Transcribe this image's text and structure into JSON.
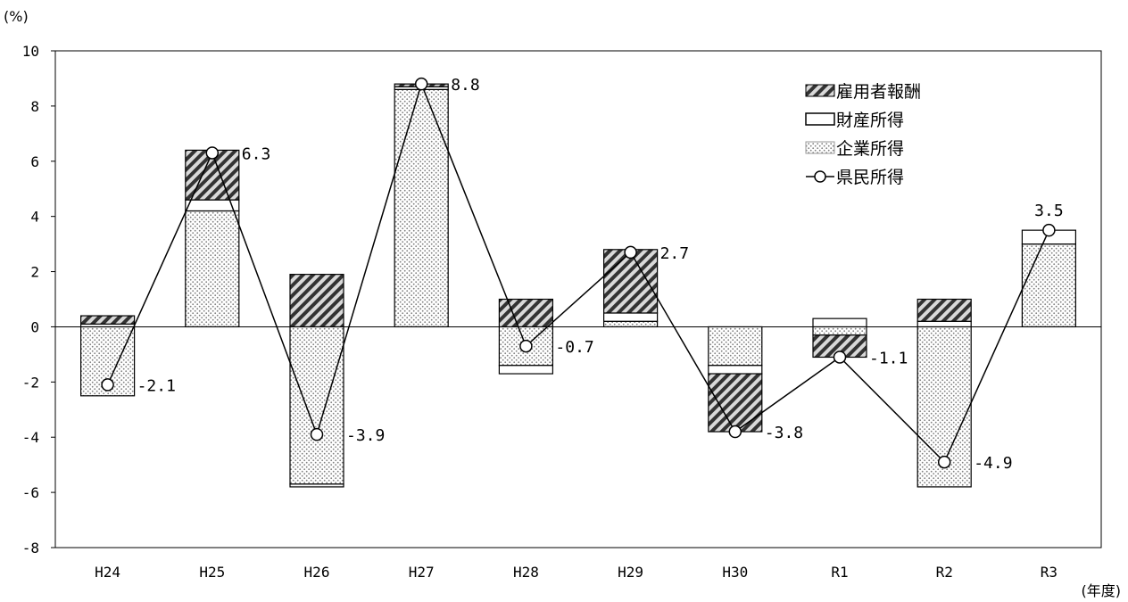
{
  "chart_data": {
    "type": "bar",
    "stacked": true,
    "y_unit": "(%)",
    "x_unit": "(年度)",
    "ylim": [
      -8,
      10
    ],
    "yticks": [
      -8,
      -6,
      -4,
      -2,
      0,
      2,
      4,
      6,
      8,
      10
    ],
    "ytick_labels": [
      "-8",
      "-6",
      "-4",
      "-2",
      "0",
      "2",
      "4",
      "6",
      "8",
      "10"
    ],
    "categories": [
      "H24",
      "H25",
      "H26",
      "H27",
      "H28",
      "H29",
      "H30",
      "R1",
      "R2",
      "R3"
    ],
    "series": [
      {
        "name": "雇用者報酬",
        "kind": "bar",
        "pattern": "hatch",
        "values": [
          0.3,
          1.8,
          1.9,
          0.1,
          1.0,
          2.3,
          -2.1,
          -0.8,
          0.8,
          0.0
        ]
      },
      {
        "name": "財産所得",
        "kind": "bar",
        "pattern": "white",
        "values": [
          0.1,
          0.4,
          -0.1,
          0.1,
          -0.3,
          0.3,
          -0.3,
          0.3,
          0.2,
          0.5
        ]
      },
      {
        "name": "企業所得",
        "kind": "bar",
        "pattern": "dots",
        "values": [
          -2.5,
          4.2,
          -5.7,
          8.6,
          -1.4,
          0.2,
          -1.4,
          -0.3,
          -5.8,
          3.0
        ]
      },
      {
        "name": "県民所得",
        "kind": "line",
        "values": [
          -2.1,
          6.3,
          -3.9,
          8.8,
          -0.7,
          2.7,
          -3.8,
          -1.1,
          -4.9,
          3.5
        ]
      }
    ],
    "data_labels": [
      "-2.1",
      "6.3",
      "-3.9",
      "8.8",
      "-0.7",
      "2.7",
      "-3.8",
      "-1.1",
      "-4.9",
      "3.5"
    ],
    "legend_position": "top-right",
    "grid": false
  }
}
